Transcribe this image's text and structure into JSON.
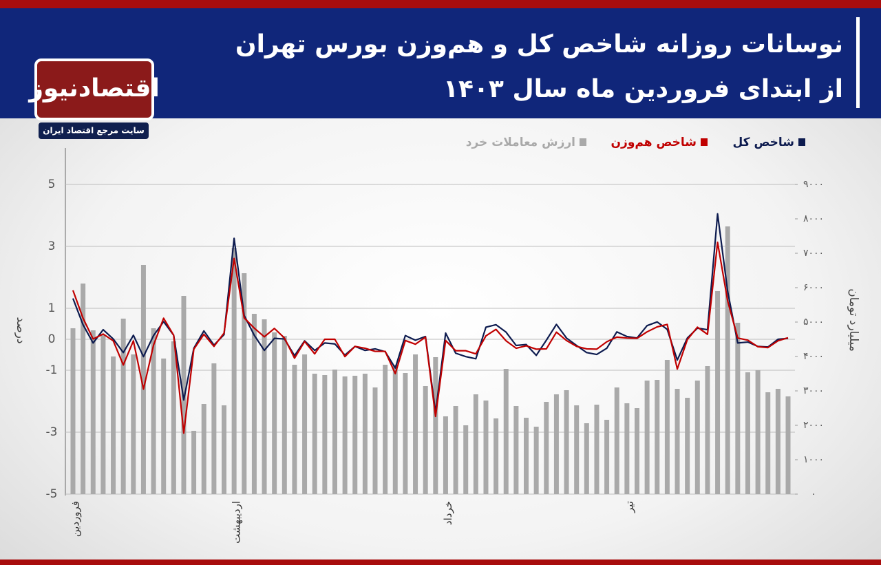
{
  "logo": {
    "name": "اقتصادنیوز",
    "tagline": "سایت مرجع اقتصاد ایران"
  },
  "chart_data": {
    "type": "combo",
    "title": "نوسانات روزانه شاخص کل و هم‌وزن بورس تهران",
    "subtitle": "از ابتدای فروردین ماه سال ۱۴۰۳",
    "ylabel": "درصد",
    "y2label": "میلیارد تومان",
    "legend": "top-right",
    "grid": true,
    "categories": [
      "فروردین",
      null,
      null,
      null,
      null,
      null,
      null,
      null,
      null,
      null,
      null,
      null,
      null,
      null,
      null,
      null,
      "اردیبهشت",
      null,
      null,
      null,
      null,
      null,
      null,
      null,
      null,
      null,
      null,
      null,
      null,
      null,
      null,
      null,
      null,
      null,
      null,
      null,
      null,
      "خرداد",
      null,
      null,
      null,
      null,
      null,
      null,
      null,
      null,
      null,
      null,
      null,
      null,
      null,
      null,
      null,
      null,
      null,
      "تیر",
      null,
      null,
      null,
      null,
      null,
      null,
      null,
      null,
      null,
      null,
      null,
      null,
      null,
      null,
      null,
      null
    ],
    "ylim": [
      -5,
      5
    ],
    "yticks": [
      5,
      3,
      1,
      0,
      -1,
      -3,
      -5
    ],
    "y2lim": [
      0,
      9000
    ],
    "y2ticks": [
      {
        "value": 0,
        "label": "۰"
      },
      {
        "value": 1000,
        "label": "۱۰۰۰"
      },
      {
        "value": 2000,
        "label": "۲۰۰۰"
      },
      {
        "value": 3000,
        "label": "۳۰۰۰"
      },
      {
        "value": 4000,
        "label": "۴۰۰۰"
      },
      {
        "value": 5000,
        "label": "۵۰۰۰"
      },
      {
        "value": 6000,
        "label": "۶۰۰۰"
      },
      {
        "value": 7000,
        "label": "۷۰۰۰"
      },
      {
        "value": 8000,
        "label": "۸۰۰۰"
      },
      {
        "value": 9000,
        "label": "۹۰۰۰"
      }
    ],
    "series": [
      {
        "name": "شاخص کل",
        "type": "line",
        "color": "#0d1b4f",
        "values": [
          1.32,
          0.47,
          -0.12,
          0.31,
          0.01,
          -0.43,
          0.13,
          -0.56,
          0.12,
          0.57,
          0.13,
          -1.96,
          -0.29,
          0.27,
          -0.19,
          0.15,
          3.26,
          0.77,
          0.13,
          -0.36,
          0.03,
          0.01,
          -0.53,
          -0.05,
          -0.36,
          -0.12,
          -0.15,
          -0.51,
          -0.23,
          -0.36,
          -0.31,
          -0.4,
          -0.93,
          0.12,
          -0.03,
          0.09,
          -2.36,
          0.2,
          -0.45,
          -0.56,
          -0.63,
          0.39,
          0.47,
          0.23,
          -0.2,
          -0.17,
          -0.52,
          -0.03,
          0.48,
          0.04,
          -0.2,
          -0.43,
          -0.49,
          -0.29,
          0.24,
          0.09,
          0.04,
          0.44,
          0.56,
          0.32,
          -0.67,
          0.04,
          0.36,
          0.31,
          4.05,
          1.55,
          -0.12,
          -0.09,
          -0.23,
          -0.25,
          0,
          0.03
        ]
      },
      {
        "name": "شاخص هم‌وزن",
        "type": "line",
        "color": "#c00000",
        "values": [
          1.58,
          0.68,
          0.01,
          0.17,
          -0.05,
          -0.83,
          -0.05,
          -1.61,
          -0.19,
          0.68,
          0.13,
          -3.03,
          -0.32,
          0.16,
          -0.23,
          0.2,
          2.61,
          0.69,
          0.36,
          0.08,
          0.35,
          0.04,
          -0.61,
          -0.07,
          -0.47,
          0,
          0,
          -0.56,
          -0.23,
          -0.29,
          -0.39,
          -0.39,
          -1.11,
          -0.04,
          -0.16,
          0.07,
          -2.49,
          -0.04,
          -0.37,
          -0.37,
          -0.47,
          0.11,
          0.32,
          -0.05,
          -0.29,
          -0.21,
          -0.32,
          -0.31,
          0.23,
          -0.04,
          -0.23,
          -0.31,
          -0.32,
          -0.08,
          0.07,
          0.04,
          0.03,
          0.24,
          0.4,
          0.48,
          -0.96,
          -0.01,
          0.39,
          0.16,
          3.13,
          1.24,
          0.04,
          -0.03,
          -0.24,
          -0.27,
          -0.05,
          0.05
        ]
      },
      {
        "name": "ارزش معاملات خرد",
        "type": "bar",
        "axis": "y2",
        "color": "#a9a9a9",
        "values": [
          4820,
          6120,
          4760,
          4620,
          4000,
          5100,
          4060,
          6660,
          4820,
          3940,
          4440,
          5760,
          1840,
          2620,
          3800,
          2580,
          7160,
          6420,
          5240,
          5080,
          4700,
          4600,
          3760,
          4060,
          3500,
          3460,
          3620,
          3420,
          3440,
          3500,
          3100,
          3760,
          3760,
          3520,
          4060,
          3140,
          3980,
          2260,
          2560,
          2000,
          2900,
          2720,
          2200,
          3640,
          2560,
          2220,
          1960,
          2680,
          2900,
          3020,
          2580,
          2060,
          2600,
          2160,
          3100,
          2640,
          2500,
          3300,
          3320,
          3900,
          3060,
          2800,
          3300,
          3720,
          5900,
          7780,
          4980,
          3540,
          3600,
          2960,
          3060,
          2840
        ]
      }
    ]
  }
}
